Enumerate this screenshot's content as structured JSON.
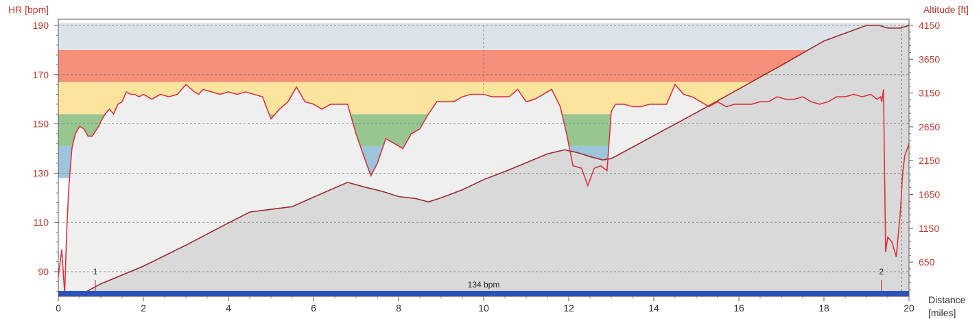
{
  "chart_data": {
    "type": "area",
    "left_axis_label": "HR [bpm]",
    "right_axis_label": "Altitude [ft]",
    "x_axis_label_line1": "Distance",
    "x_axis_label_line2": "[miles]",
    "x_range": [
      0,
      20
    ],
    "hr_range": [
      80,
      190
    ],
    "alt_range": [
      50,
      4150
    ],
    "x_ticks": [
      0,
      2,
      4,
      6,
      8,
      10,
      12,
      14,
      16,
      18,
      20
    ],
    "hr_ticks": [
      90,
      110,
      130,
      150,
      170,
      190
    ],
    "alt_ticks": [
      650,
      1150,
      1650,
      2150,
      2650,
      3150,
      3650,
      4150
    ],
    "hr_zones": [
      {
        "from": 128,
        "to": 141,
        "color": "#9cc5dc"
      },
      {
        "from": 141,
        "to": 154,
        "color": "#97c690"
      },
      {
        "from": 154,
        "to": 167,
        "color": "#fde49e"
      },
      {
        "from": 167,
        "to": 180,
        "color": "#f6907a"
      },
      {
        "from": 180,
        "to": 191,
        "color": "#dde3ea"
      }
    ],
    "average_label": "134 bpm",
    "average_bar_color": "#2a52be",
    "laps": [
      {
        "label": "1",
        "x": 0.87
      },
      {
        "label": "2",
        "x": 19.35
      }
    ],
    "crosshair_x": 10.0,
    "hr_series": {
      "x": [
        0,
        0.08,
        0.15,
        0.2,
        0.25,
        0.32,
        0.4,
        0.5,
        0.6,
        0.7,
        0.8,
        0.87,
        0.95,
        1.0,
        1.1,
        1.2,
        1.3,
        1.4,
        1.5,
        1.6,
        1.7,
        1.8,
        1.9,
        2.0,
        2.1,
        2.2,
        2.4,
        2.6,
        2.8,
        3.0,
        3.2,
        3.3,
        3.4,
        3.6,
        3.8,
        4.0,
        4.2,
        4.4,
        4.6,
        4.8,
        5.0,
        5.1,
        5.2,
        5.4,
        5.6,
        5.8,
        6.0,
        6.2,
        6.4,
        6.6,
        6.8,
        7.0,
        7.2,
        7.35,
        7.5,
        7.7,
        7.9,
        8.1,
        8.3,
        8.5,
        8.7,
        8.9,
        9.1,
        9.3,
        9.5,
        9.7,
        10.0,
        10.2,
        10.4,
        10.6,
        10.8,
        11.0,
        11.2,
        11.4,
        11.6,
        11.8,
        11.95,
        12.1,
        12.3,
        12.45,
        12.6,
        12.75,
        12.9,
        13.0,
        13.1,
        13.3,
        13.5,
        13.7,
        13.9,
        14.1,
        14.3,
        14.5,
        14.7,
        14.9,
        15.1,
        15.3,
        15.5,
        15.7,
        15.9,
        16.1,
        16.3,
        16.5,
        16.7,
        16.9,
        17.1,
        17.3,
        17.5,
        17.7,
        17.9,
        18.1,
        18.3,
        18.5,
        18.7,
        18.9,
        19.1,
        19.25,
        19.33,
        19.36,
        19.4,
        19.45,
        19.5,
        19.6,
        19.7,
        19.8,
        19.85,
        19.9,
        20.0
      ],
      "y": [
        88,
        99,
        81,
        108,
        125,
        140,
        146,
        149,
        148,
        145,
        145,
        147,
        149,
        151,
        154,
        156,
        154,
        158,
        159,
        163,
        162,
        162,
        161,
        162,
        161,
        160,
        162,
        161,
        162,
        166,
        163,
        162,
        164,
        163,
        162,
        163,
        162,
        163,
        162,
        161,
        152,
        154,
        156,
        159,
        165,
        159,
        158,
        156,
        158,
        158,
        158,
        146,
        136,
        129,
        134,
        144,
        142,
        140,
        146,
        148,
        154,
        159,
        159,
        159,
        161,
        162,
        162,
        161,
        161,
        161,
        164,
        159,
        160,
        162,
        164,
        157,
        146,
        133,
        132,
        125,
        132,
        133,
        131,
        155,
        158,
        158,
        157,
        157,
        158,
        158,
        158,
        166,
        162,
        161,
        159,
        157,
        159,
        157,
        158,
        158,
        158,
        159,
        159,
        161,
        160,
        160,
        161,
        159,
        158,
        159,
        161,
        161,
        162,
        161,
        162,
        160,
        161,
        159,
        164,
        98,
        104,
        102,
        96,
        115,
        130,
        137,
        142
      ]
    },
    "altitude_series": {
      "x": [
        0.0,
        0.5,
        1.0,
        2.0,
        3.0,
        4.0,
        4.5,
        5.0,
        5.5,
        6.0,
        6.8,
        7.2,
        7.6,
        8.0,
        8.4,
        8.7,
        9.0,
        9.5,
        10.0,
        10.5,
        11.0,
        11.5,
        11.9,
        12.2,
        12.5,
        12.8,
        13.0,
        13.5,
        14.0,
        15.0,
        16.0,
        17.0,
        18.0,
        19.0,
        19.3,
        19.5,
        19.8,
        20.0
      ],
      "y": [
        20,
        160,
        330,
        590,
        900,
        1230,
        1390,
        1430,
        1470,
        1610,
        1830,
        1760,
        1700,
        1620,
        1590,
        1540,
        1600,
        1720,
        1870,
        1990,
        2120,
        2250,
        2310,
        2270,
        2210,
        2160,
        2180,
        2350,
        2520,
        2860,
        3210,
        3560,
        3920,
        4150,
        4150,
        4110,
        4110,
        4150
      ]
    }
  }
}
